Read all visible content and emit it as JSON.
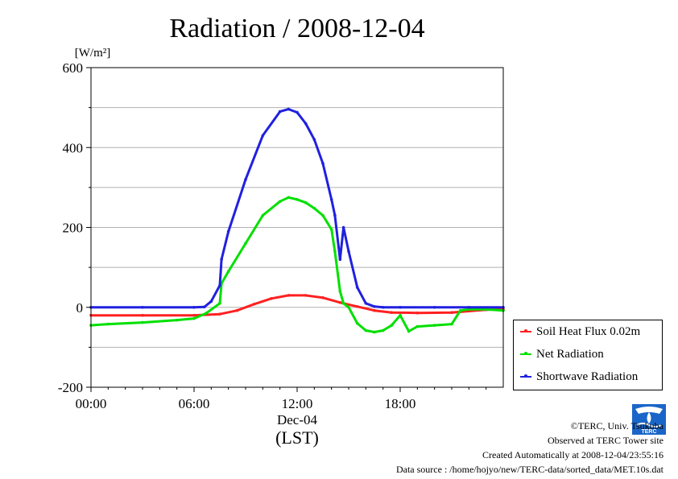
{
  "chart_data": {
    "type": "line",
    "title": "Radiation / 2008-12-04",
    "ylabel_unit": "[W/m²]",
    "xlabel_date": "Dec-04",
    "xlabel_tz": "(LST)",
    "ylim": [
      -200,
      600
    ],
    "xlim": [
      0,
      24
    ],
    "yticks": [
      -200,
      0,
      200,
      400,
      600
    ],
    "xtick_labels": [
      "00:00",
      "06:00",
      "12:00",
      "18:00"
    ],
    "xtick_values": [
      0,
      6,
      12,
      18
    ],
    "grid": true,
    "legend_position": "outside-right-bottom",
    "x_unit": "hour (LST)",
    "series": [
      {
        "name": "Soil Heat Flux 0.02m",
        "color": "#ff2020",
        "x": [
          0,
          3,
          6,
          7.5,
          8.5,
          9.5,
          10.5,
          11.5,
          12.5,
          13.5,
          14.5,
          15.5,
          16.5,
          17.5,
          19,
          21,
          23,
          24
        ],
        "values": [
          -20,
          -20,
          -20,
          -17,
          -8,
          8,
          22,
          30,
          30,
          24,
          12,
          2,
          -8,
          -13,
          -14,
          -13,
          -6,
          -5
        ]
      },
      {
        "name": "Net Radiation",
        "color": "#00e000",
        "x": [
          0,
          1,
          3,
          5,
          6,
          6.7,
          7.5,
          7.6,
          8,
          9,
          10,
          11,
          11.5,
          12,
          12.5,
          13,
          13.5,
          14,
          14.2,
          14.5,
          14.7,
          15,
          15.5,
          16,
          16.5,
          17,
          17.5,
          18,
          18.5,
          19,
          20,
          21,
          21.5,
          22,
          23,
          24
        ],
        "values": [
          -45,
          -42,
          -38,
          -32,
          -28,
          -15,
          10,
          60,
          90,
          160,
          230,
          265,
          275,
          270,
          262,
          248,
          230,
          195,
          140,
          40,
          10,
          0,
          -40,
          -58,
          -62,
          -58,
          -45,
          -20,
          -60,
          -48,
          -45,
          -42,
          -8,
          -5,
          -5,
          -8
        ]
      },
      {
        "name": "Shortwave Radiation",
        "color": "#2020e0",
        "x": [
          0,
          3,
          6,
          6.6,
          7,
          7.5,
          7.6,
          8,
          9,
          10,
          11,
          11.5,
          12,
          12.5,
          13,
          13.5,
          14,
          14.2,
          14.5,
          14.7,
          15,
          15.5,
          16,
          16.5,
          17,
          18,
          20,
          22,
          24
        ],
        "values": [
          0,
          0,
          0,
          1,
          15,
          55,
          120,
          190,
          320,
          430,
          490,
          496,
          488,
          460,
          420,
          360,
          270,
          230,
          120,
          200,
          140,
          50,
          10,
          2,
          0,
          0,
          0,
          0,
          0
        ]
      }
    ]
  },
  "footer": {
    "copyright": "©TERC, Univ. Tsukuba",
    "observed": "Observed at TERC Tower site",
    "created": "Created Automatically at 2008-12-04/23:55:16",
    "source": "Data source : /home/hojyo/new/TERC-data/sorted_data/MET.10s.dat",
    "logo_text": "TERC"
  }
}
